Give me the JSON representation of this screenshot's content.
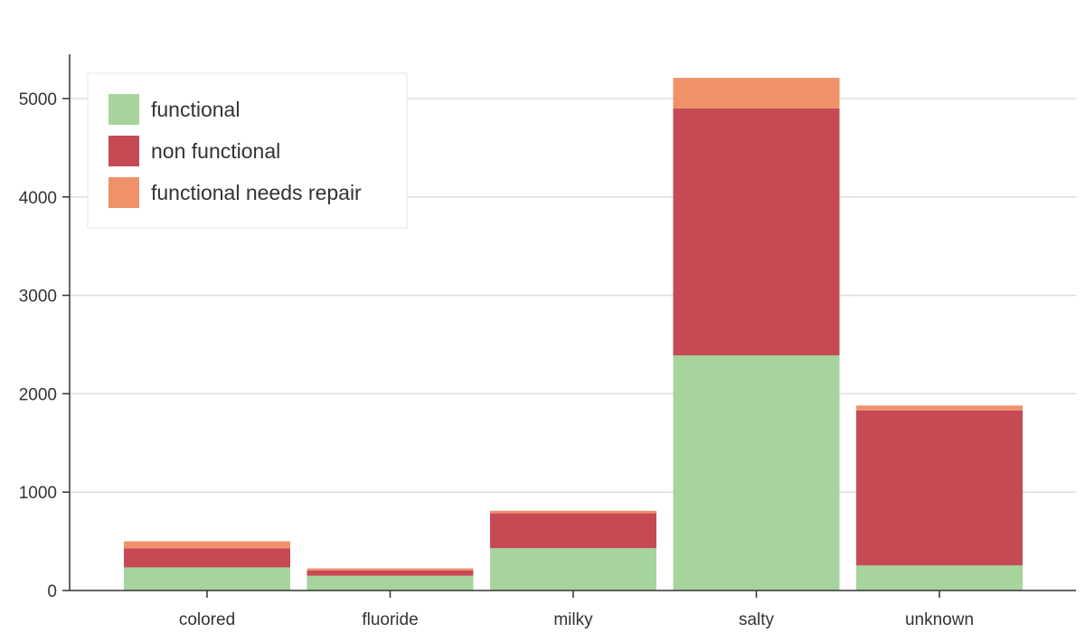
{
  "chart_data": {
    "type": "bar",
    "stacked": true,
    "categories": [
      "colored",
      "fluoride",
      "milky",
      "salty",
      "unknown"
    ],
    "series": [
      {
        "name": "functional",
        "color": "#a6d49c",
        "values": [
          235,
          150,
          430,
          2390,
          255
        ]
      },
      {
        "name": "non functional",
        "color": "#c64a54",
        "values": [
          195,
          55,
          355,
          2510,
          1575
        ]
      },
      {
        "name": "functional needs repair",
        "color": "#ef926a",
        "values": [
          70,
          20,
          25,
          310,
          50
        ]
      }
    ],
    "ylim": [
      0,
      5450
    ],
    "yticks": [
      0,
      1000,
      2000,
      3000,
      4000,
      5000
    ],
    "grid": true,
    "legend_position": "top-left"
  }
}
